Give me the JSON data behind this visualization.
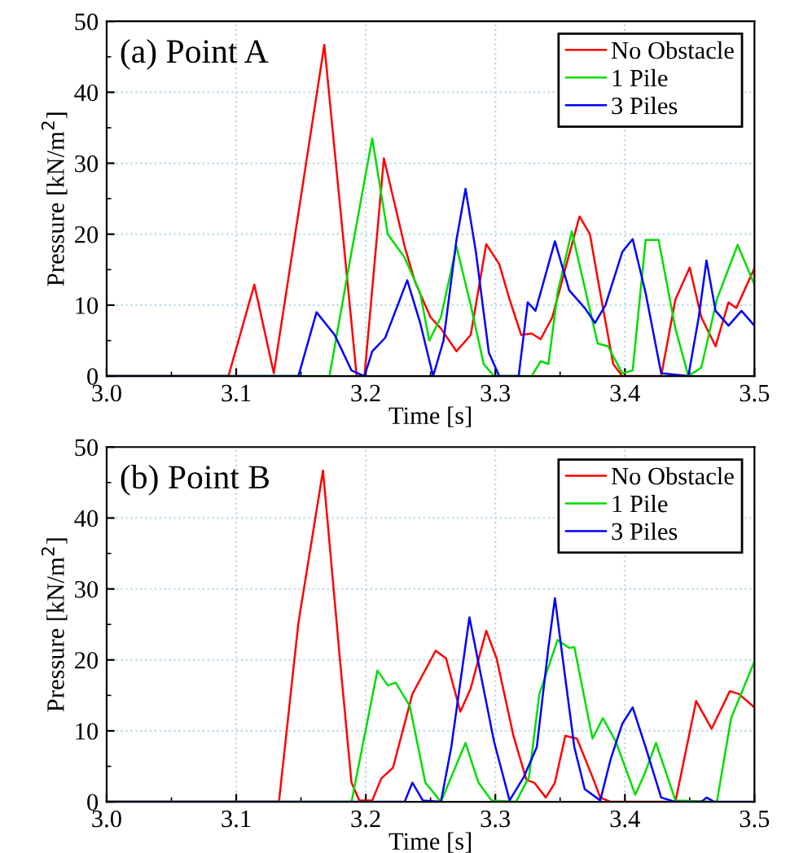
{
  "chart_data": [
    {
      "type": "line",
      "title": "(a) Point A",
      "xlabel": "Time [s]",
      "ylabel": "Pressure [kN/m$^{2}$]",
      "xlim": [
        3.0,
        3.5
      ],
      "ylim": [
        0,
        50
      ],
      "xticks": [
        {
          "value": 3,
          "label": "3.0"
        },
        3.1,
        3.2,
        3.3,
        3.4,
        3.5
      ],
      "yticks": [
        0,
        10,
        20,
        30,
        40,
        50
      ],
      "grid": true,
      "legend": "top right",
      "line_style": "solid",
      "marker": "none",
      "series": [
        {
          "name": "No Obstacle",
          "color": "#ff0000",
          "x": [
            3.0,
            3.094,
            3.114,
            3.129,
            3.168,
            3.193,
            3.199,
            3.214,
            3.23,
            3.238,
            3.25,
            3.258,
            3.27,
            3.281,
            3.293,
            3.303,
            3.311,
            3.32,
            3.328,
            3.335,
            3.344,
            3.355,
            3.365,
            3.373,
            3.381,
            3.391,
            3.398,
            3.428,
            3.439,
            3.45,
            3.459,
            3.47,
            3.48,
            3.486,
            3.5
          ],
          "values": [
            0,
            0,
            12.9,
            0.4,
            46.7,
            0,
            0,
            30.7,
            18.3,
            13.3,
            8.3,
            6.7,
            3.5,
            5.8,
            18.6,
            15.8,
            10.8,
            5.8,
            6,
            5.2,
            8.3,
            15.8,
            22.5,
            20,
            11.7,
            1.7,
            0,
            0,
            10.8,
            15.3,
            8.3,
            4.2,
            10.4,
            9.6,
            15.2
          ]
        },
        {
          "name": "1 Pile",
          "color": "#00dd00",
          "x": [
            3.0,
            3.172,
            3.189,
            3.205,
            3.217,
            3.23,
            3.242,
            3.249,
            3.258,
            3.27,
            3.281,
            3.291,
            3.299,
            3.328,
            3.335,
            3.341,
            3.348,
            3.359,
            3.369,
            3.379,
            3.387,
            3.398,
            3.406,
            3.416,
            3.426,
            3.439,
            3.449,
            3.459,
            3.471,
            3.487,
            3.5
          ],
          "values": [
            0,
            0,
            17.5,
            33.5,
            20,
            16.7,
            11.7,
            5,
            8.3,
            18.3,
            10,
            1.7,
            0,
            0,
            2.1,
            1.7,
            11.7,
            20.4,
            12.5,
            4.6,
            4.2,
            0.4,
            0.8,
            19.2,
            19.2,
            6.7,
            0,
            1.2,
            10.8,
            18.5,
            12.9
          ]
        },
        {
          "name": "3 Piles",
          "color": "#0000ff",
          "x": [
            3.0,
            3.148,
            3.162,
            3.176,
            3.189,
            3.199,
            3.205,
            3.215,
            3.232,
            3.242,
            3.252,
            3.26,
            3.27,
            3.277,
            3.285,
            3.295,
            3.303,
            3.318,
            3.325,
            3.331,
            3.346,
            3.357,
            3.369,
            3.377,
            3.385,
            3.398,
            3.406,
            3.416,
            3.428,
            3.449,
            3.457,
            3.463,
            3.47,
            3.48,
            3.49,
            3.5
          ],
          "values": [
            0,
            0,
            9,
            5.8,
            0.8,
            0,
            3.5,
            5.4,
            13.5,
            7.5,
            0,
            5,
            19.2,
            26.4,
            17.5,
            3.3,
            0,
            0,
            10.4,
            9.2,
            19,
            12.1,
            9.6,
            7.5,
            10,
            17.5,
            19.3,
            11.7,
            0.4,
            0,
            8.3,
            16.3,
            9.2,
            7.1,
            9.2,
            7.1
          ]
        }
      ]
    },
    {
      "type": "line",
      "title": "(b) Point B",
      "xlabel": "Time [s]",
      "ylabel": "Pressure [kN/m$^{2}$]",
      "xlim": [
        3.0,
        3.5
      ],
      "ylim": [
        0,
        50
      ],
      "xticks": [
        {
          "value": 3,
          "label": "3.0"
        },
        3.1,
        3.2,
        3.3,
        3.4,
        3.5
      ],
      "yticks": [
        0,
        10,
        20,
        30,
        40,
        50
      ],
      "grid": true,
      "legend": "top right",
      "line_style": "solid",
      "marker": "none",
      "series": [
        {
          "name": "No Obstacle",
          "color": "#ff0000",
          "x": [
            3.0,
            3.133,
            3.148,
            3.167,
            3.18,
            3.189,
            3.195,
            3.205,
            3.212,
            3.221,
            3.236,
            3.254,
            3.262,
            3.273,
            3.281,
            3.293,
            3.301,
            3.314,
            3.324,
            3.33,
            3.339,
            3.346,
            3.354,
            3.363,
            3.375,
            3.381,
            3.389,
            3.439,
            3.455,
            3.467,
            3.481,
            3.488,
            3.5
          ],
          "values": [
            0,
            0,
            25.2,
            46.7,
            20.2,
            2.7,
            0.2,
            0.2,
            3.3,
            4.8,
            15.2,
            21.3,
            20.2,
            12.7,
            16,
            24.1,
            20.2,
            9.3,
            3.1,
            2.7,
            0.6,
            2.7,
            9.3,
            8.9,
            3.5,
            0.6,
            0,
            0,
            14.2,
            10.3,
            15.6,
            15.2,
            13.3
          ]
        },
        {
          "name": "1 Pile",
          "color": "#00dd00",
          "x": [
            3.0,
            3.189,
            3.209,
            3.217,
            3.223,
            3.234,
            3.246,
            3.258,
            3.266,
            3.277,
            3.287,
            3.297,
            3.316,
            3.326,
            3.334,
            3.348,
            3.357,
            3.361,
            3.375,
            3.383,
            3.393,
            3.408,
            3.416,
            3.424,
            3.439,
            3.471,
            3.482,
            3.5
          ],
          "values": [
            0,
            0,
            18.5,
            16.4,
            16.8,
            13.5,
            2.7,
            0,
            3.5,
            8.3,
            2.7,
            0.2,
            0,
            3.5,
            15.2,
            22.8,
            21.7,
            21.8,
            8.9,
            11.8,
            8.5,
            1,
            4.3,
            8.3,
            0.2,
            0,
            11.8,
            19.8
          ]
        },
        {
          "name": "3 Piles",
          "color": "#0000ff",
          "x": [
            3.0,
            3.23,
            3.236,
            3.244,
            3.258,
            3.266,
            3.28,
            3.289,
            3.299,
            3.311,
            3.322,
            3.332,
            3.341,
            3.346,
            3.352,
            3.361,
            3.369,
            3.381,
            3.389,
            3.398,
            3.406,
            3.416,
            3.428,
            3.439,
            3.459,
            3.463,
            3.469,
            3.5
          ],
          "values": [
            0,
            0,
            2.7,
            0.2,
            0,
            7.7,
            26,
            17.7,
            8.5,
            0.2,
            3.5,
            7.7,
            21.8,
            28.7,
            20.2,
            7.7,
            1.8,
            0.2,
            6,
            11,
            13.3,
            7.7,
            0.6,
            0,
            0,
            0.6,
            0,
            0
          ]
        }
      ]
    }
  ]
}
